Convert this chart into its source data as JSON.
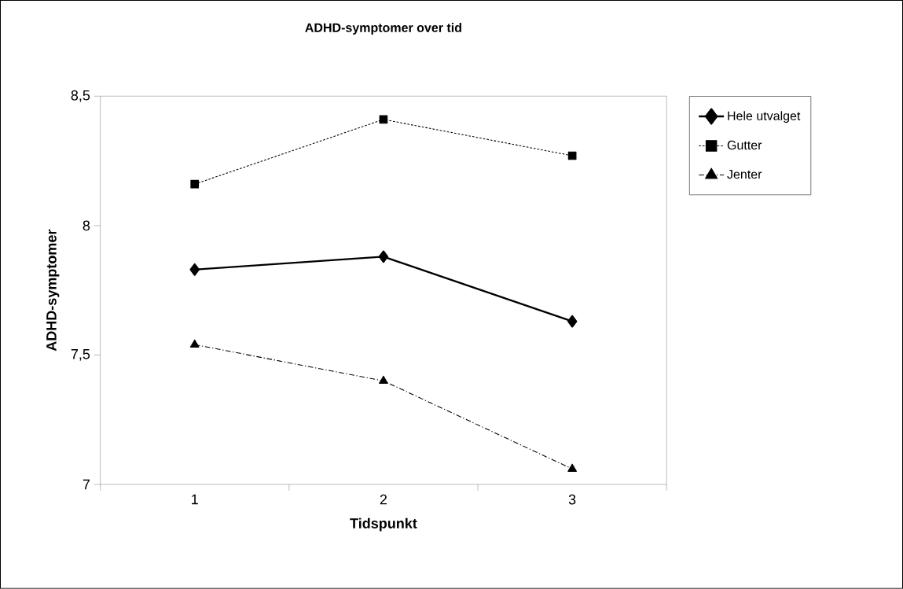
{
  "chart_data": {
    "type": "line",
    "title": "ADHD-symptomer over tid",
    "xlabel": "Tidspunkt",
    "ylabel": "ADHD-symptomer",
    "categories": [
      "1",
      "2",
      "3"
    ],
    "series": [
      {
        "name": "Hele utvalget",
        "color": "#000000",
        "values": [
          7.83,
          7.88,
          7.63
        ],
        "marker": "diamond",
        "line_style": "solid"
      },
      {
        "name": "Gutter",
        "color": "#000000",
        "values": [
          8.16,
          8.41,
          8.27
        ],
        "marker": "square",
        "line_style": "dotted"
      },
      {
        "name": "Jenter",
        "color": "#000000",
        "values": [
          7.54,
          7.4,
          7.06
        ],
        "marker": "triangle",
        "line_style": "dashdot"
      }
    ],
    "ylim": [
      7,
      8.5
    ],
    "yticks": [
      {
        "value": 7,
        "label": "7"
      },
      {
        "value": 7.5,
        "label": "7,5"
      },
      {
        "value": 8,
        "label": "8"
      },
      {
        "value": 8.5,
        "label": "8,5"
      }
    ],
    "grid": false,
    "legend": "right"
  }
}
